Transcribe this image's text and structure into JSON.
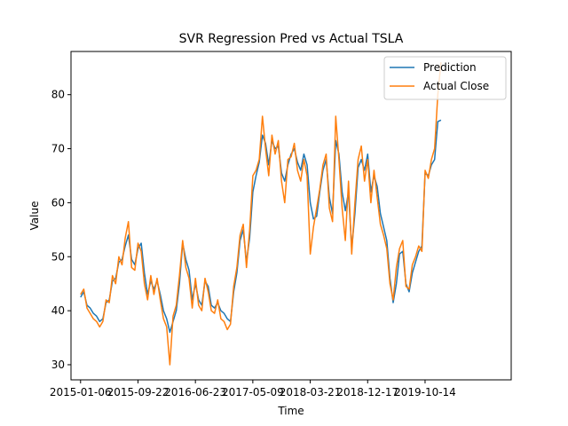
{
  "chart_data": {
    "type": "line",
    "title": "SVR Regression Pred vs Actual TSLA",
    "xlabel": "Time",
    "ylabel": "Value",
    "x_tick_labels": [
      "2015-01-06",
      "2015-09-22",
      "2016-06-23",
      "2017-05-09",
      "2018-03-21",
      "2018-12-17",
      "2019-10-14"
    ],
    "y_ticks": [
      30,
      40,
      50,
      60,
      70,
      80
    ],
    "ylim": [
      27.2,
      88.0
    ],
    "xlim": [
      -30,
      1350
    ],
    "x_tick_positions": [
      0,
      180,
      360,
      540,
      720,
      900,
      1080
    ],
    "legend_position": "top-right",
    "grid": false,
    "series": [
      {
        "name": "Prediction",
        "color": "#1f77b4",
        "x": [
          0,
          10,
          20,
          30,
          40,
          50,
          60,
          70,
          80,
          90,
          100,
          110,
          120,
          130,
          140,
          150,
          160,
          170,
          180,
          190,
          200,
          210,
          220,
          230,
          240,
          250,
          260,
          270,
          280,
          290,
          300,
          310,
          320,
          330,
          340,
          350,
          360,
          370,
          380,
          390,
          400,
          410,
          420,
          430,
          440,
          450,
          460,
          470,
          480,
          490,
          500,
          510,
          520,
          530,
          540,
          550,
          560,
          570,
          580,
          590,
          600,
          610,
          620,
          630,
          640,
          650,
          660,
          670,
          680,
          690,
          700,
          710,
          720,
          730,
          740,
          750,
          760,
          770,
          780,
          790,
          800,
          810,
          820,
          830,
          840,
          850,
          860,
          870,
          880,
          890,
          900,
          910,
          920,
          930,
          940,
          950,
          960,
          970,
          980,
          990,
          1000,
          1010,
          1020,
          1030,
          1040,
          1050,
          1060,
          1070,
          1080,
          1090,
          1100,
          1110,
          1120,
          1130
        ],
        "values": [
          42.5,
          43.5,
          41.0,
          40.5,
          39.5,
          39.0,
          38.0,
          38.5,
          41.5,
          42.0,
          45.5,
          46.0,
          49.0,
          49.5,
          52.0,
          54.0,
          49.5,
          48.5,
          51.5,
          52.5,
          47.0,
          43.0,
          45.5,
          44.0,
          45.5,
          43.0,
          40.0,
          38.5,
          36.0,
          38.0,
          40.0,
          45.0,
          52.5,
          49.5,
          47.5,
          42.0,
          45.0,
          42.0,
          41.0,
          45.5,
          44.5,
          41.0,
          40.5,
          41.5,
          40.0,
          39.5,
          38.5,
          38.0,
          43.5,
          47.0,
          53.0,
          55.0,
          49.0,
          53.5,
          62.0,
          65.0,
          67.5,
          72.5,
          71.0,
          67.0,
          71.5,
          70.0,
          70.5,
          65.5,
          64.0,
          67.0,
          69.0,
          70.0,
          67.5,
          66.0,
          69.0,
          67.0,
          60.0,
          57.0,
          57.5,
          62.0,
          66.0,
          68.0,
          61.0,
          58.0,
          71.5,
          69.0,
          62.0,
          58.5,
          62.0,
          51.5,
          58.0,
          66.5,
          68.0,
          66.0,
          69.0,
          62.0,
          65.0,
          63.0,
          58.0,
          55.5,
          53.0,
          46.0,
          41.5,
          45.0,
          50.5,
          51.0,
          45.0,
          43.5,
          47.0,
          49.0,
          51.0,
          52.0,
          65.5,
          65.0,
          67.0,
          68.0,
          75.0,
          75.3
        ]
      },
      {
        "name": "Actual Close",
        "color": "#ff7f0e",
        "x": [
          0,
          10,
          20,
          30,
          40,
          50,
          60,
          70,
          80,
          90,
          100,
          110,
          120,
          130,
          140,
          150,
          160,
          170,
          180,
          190,
          200,
          210,
          220,
          230,
          240,
          250,
          260,
          270,
          280,
          290,
          300,
          310,
          320,
          330,
          340,
          350,
          360,
          370,
          380,
          390,
          400,
          410,
          420,
          430,
          440,
          450,
          460,
          470,
          480,
          490,
          500,
          510,
          520,
          530,
          540,
          550,
          560,
          570,
          580,
          590,
          600,
          610,
          620,
          630,
          640,
          650,
          660,
          670,
          680,
          690,
          700,
          710,
          720,
          730,
          740,
          750,
          760,
          770,
          780,
          790,
          800,
          810,
          820,
          830,
          840,
          850,
          860,
          870,
          880,
          890,
          900,
          910,
          920,
          930,
          940,
          950,
          960,
          970,
          980,
          990,
          1000,
          1010,
          1020,
          1030,
          1040,
          1050,
          1060,
          1070,
          1080,
          1090,
          1100,
          1110,
          1120,
          1130
        ],
        "values": [
          43.0,
          44.0,
          40.5,
          39.5,
          38.5,
          38.0,
          37.0,
          38.0,
          42.0,
          41.5,
          46.5,
          45.0,
          50.0,
          48.5,
          53.5,
          56.5,
          48.0,
          47.5,
          52.5,
          51.0,
          45.0,
          42.0,
          46.5,
          43.0,
          46.0,
          42.0,
          38.5,
          37.0,
          30.0,
          39.0,
          41.0,
          46.5,
          53.0,
          48.0,
          46.0,
          40.5,
          46.0,
          41.0,
          40.0,
          46.0,
          43.5,
          40.0,
          39.5,
          42.0,
          38.5,
          38.0,
          36.5,
          37.5,
          44.5,
          48.0,
          54.0,
          56.0,
          48.0,
          55.0,
          65.0,
          66.0,
          68.0,
          76.0,
          70.0,
          65.0,
          72.5,
          69.0,
          71.5,
          64.0,
          60.0,
          68.0,
          68.5,
          71.0,
          66.0,
          64.0,
          68.0,
          65.0,
          50.5,
          55.5,
          59.0,
          62.5,
          67.0,
          69.0,
          59.0,
          56.5,
          76.0,
          68.0,
          59.0,
          53.0,
          64.0,
          50.5,
          60.0,
          68.0,
          70.5,
          64.0,
          68.0,
          60.0,
          66.0,
          61.0,
          56.0,
          54.0,
          51.5,
          45.0,
          42.0,
          48.0,
          51.5,
          53.0,
          44.5,
          44.0,
          48.5,
          50.0,
          52.0,
          51.0,
          66.0,
          64.5,
          68.0,
          70.0,
          80.0,
          86.0
        ]
      }
    ]
  }
}
